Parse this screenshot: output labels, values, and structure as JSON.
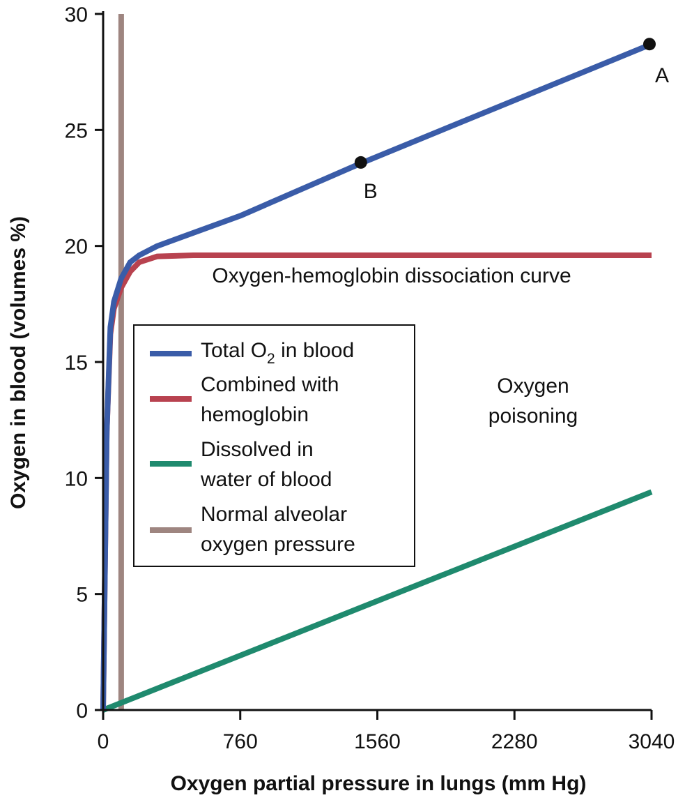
{
  "chart_data": {
    "type": "line",
    "title": "",
    "xlabel": "Oxygen partial pressure in lungs (mm Hg)",
    "ylabel": "Oxygen in blood (volumes %)",
    "xlim": [
      0,
      3040
    ],
    "ylim": [
      0,
      30
    ],
    "x_ticks": [
      "0",
      "760",
      "1560",
      "2280",
      "3040"
    ],
    "y_ticks": [
      "0",
      "5",
      "10",
      "15",
      "20",
      "25",
      "30"
    ],
    "grid": false,
    "legend_position": "middle-left",
    "series": [
      {
        "name": "Total O2 in blood",
        "color": "#3a5ca8",
        "points": [
          [
            0,
            0
          ],
          [
            20,
            12
          ],
          [
            40,
            16.5
          ],
          [
            60,
            17.6
          ],
          [
            100,
            18.6
          ],
          [
            150,
            19.3
          ],
          [
            200,
            19.6
          ],
          [
            300,
            20.0
          ],
          [
            760,
            21.3
          ],
          [
            1440,
            23.6
          ],
          [
            3040,
            28.7
          ]
        ]
      },
      {
        "name": "Combined with hemoglobin",
        "color": "#b8424f",
        "points": [
          [
            0,
            0
          ],
          [
            20,
            12
          ],
          [
            40,
            16.2
          ],
          [
            60,
            17.3
          ],
          [
            100,
            18.2
          ],
          [
            150,
            18.9
          ],
          [
            200,
            19.3
          ],
          [
            300,
            19.55
          ],
          [
            500,
            19.6
          ],
          [
            3040,
            19.6
          ]
        ]
      },
      {
        "name": "Dissolved in water of blood",
        "color": "#1f8a6e",
        "points": [
          [
            0,
            0
          ],
          [
            3040,
            9.4
          ]
        ]
      },
      {
        "name": "Normal alveolar oxygen pressure",
        "color": "#9e8580",
        "points": [
          [
            100,
            0
          ],
          [
            100,
            30
          ]
        ]
      }
    ],
    "markers": [
      {
        "label": "A",
        "x": 3040,
        "y": 28.7
      },
      {
        "label": "B",
        "x": 1440,
        "y": 23.6
      }
    ],
    "annotations": [
      "Oxygen-hemoglobin dissociation curve",
      "Oxygen",
      "poisoning"
    ],
    "legend": [
      {
        "lines": [
          "Total O",
          "2",
          " in blood"
        ],
        "color": "#3a5ca8"
      },
      {
        "lines": [
          "Combined with",
          "hemoglobin"
        ],
        "color": "#b8424f"
      },
      {
        "lines": [
          "Dissolved in",
          "water of blood"
        ],
        "color": "#1f8a6e"
      },
      {
        "lines": [
          "Normal alveolar",
          "oxygen pressure"
        ],
        "color": "#9e8580"
      }
    ]
  }
}
